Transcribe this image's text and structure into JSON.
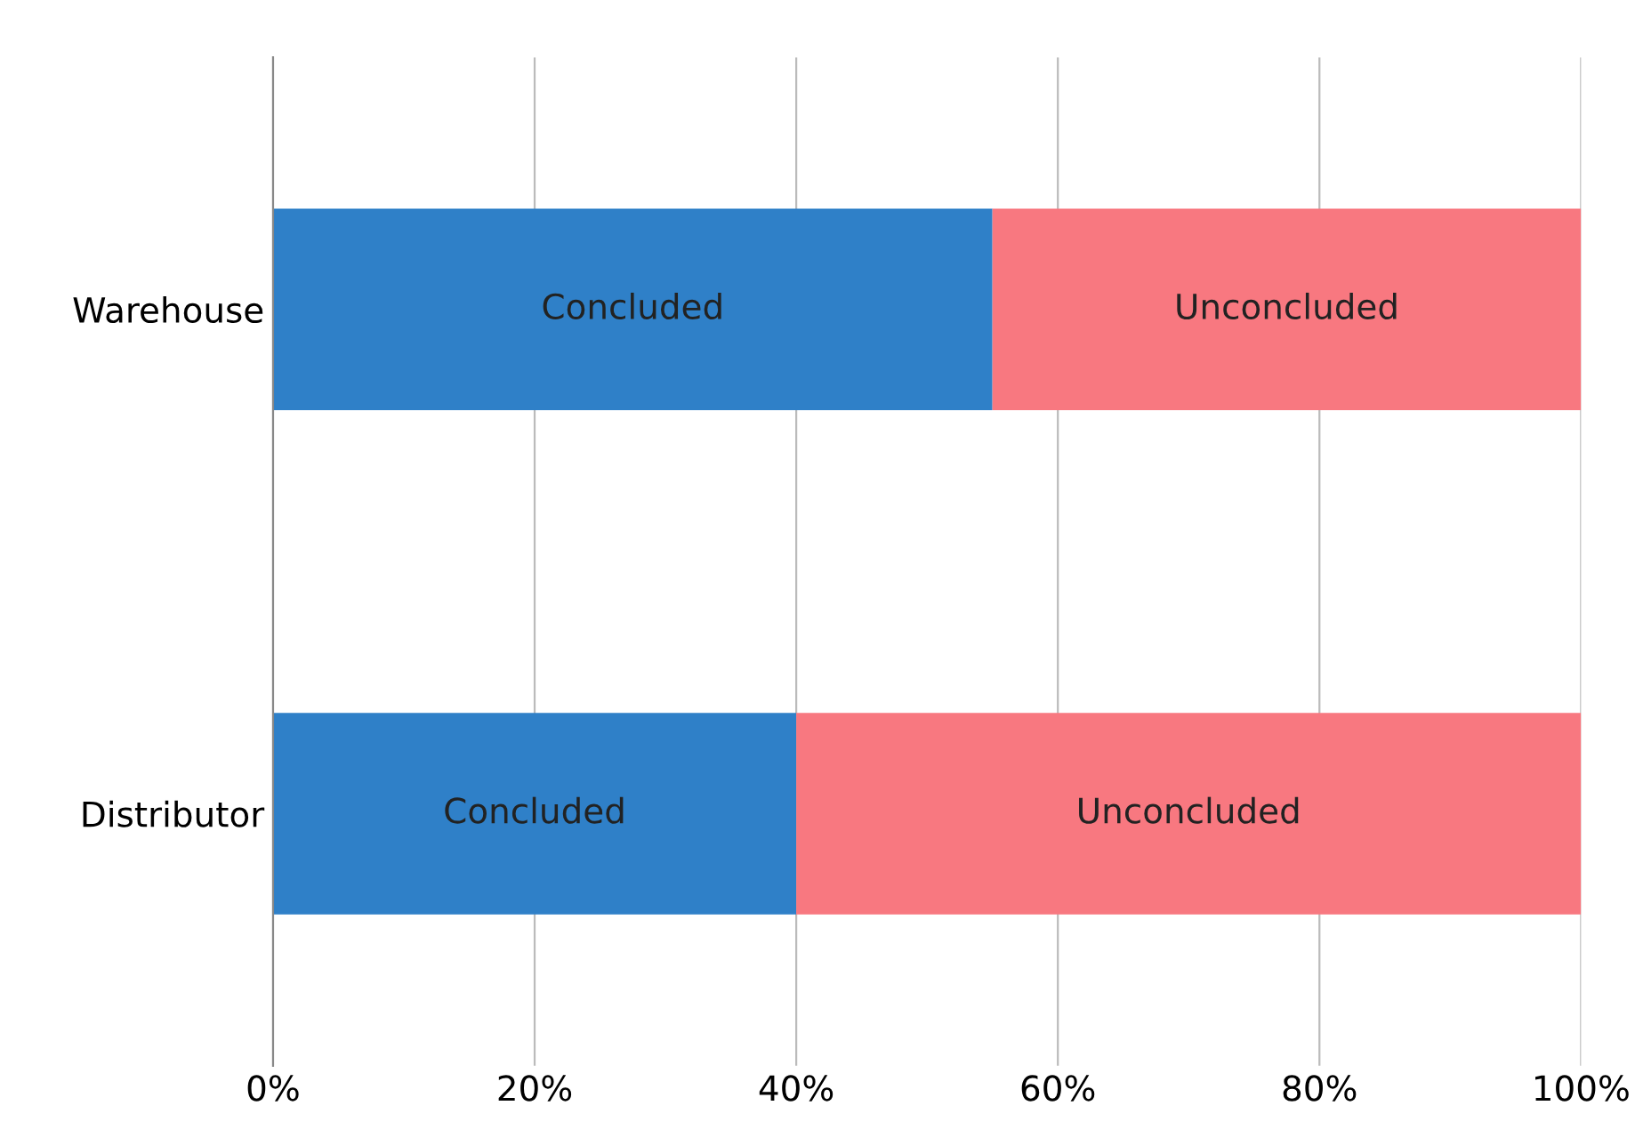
{
  "chart_data": {
    "type": "bar",
    "orientation": "horizontal",
    "stacked": true,
    "categories": [
      "Warehouse",
      "Distributor"
    ],
    "series": [
      {
        "name": "Concluded",
        "color": "#2f80c8",
        "values": [
          55,
          40
        ]
      },
      {
        "name": "Unconcluded",
        "color": "#f87880",
        "values": [
          45,
          60
        ]
      }
    ],
    "xlim": [
      0,
      100
    ],
    "xticks": [
      {
        "value": 0,
        "label": "0%"
      },
      {
        "value": 20,
        "label": "20%"
      },
      {
        "value": 40,
        "label": "40%"
      },
      {
        "value": 60,
        "label": "60%"
      },
      {
        "value": 80,
        "label": "80%"
      },
      {
        "value": 100,
        "label": "100%"
      }
    ],
    "grid": "x",
    "legend": false
  }
}
